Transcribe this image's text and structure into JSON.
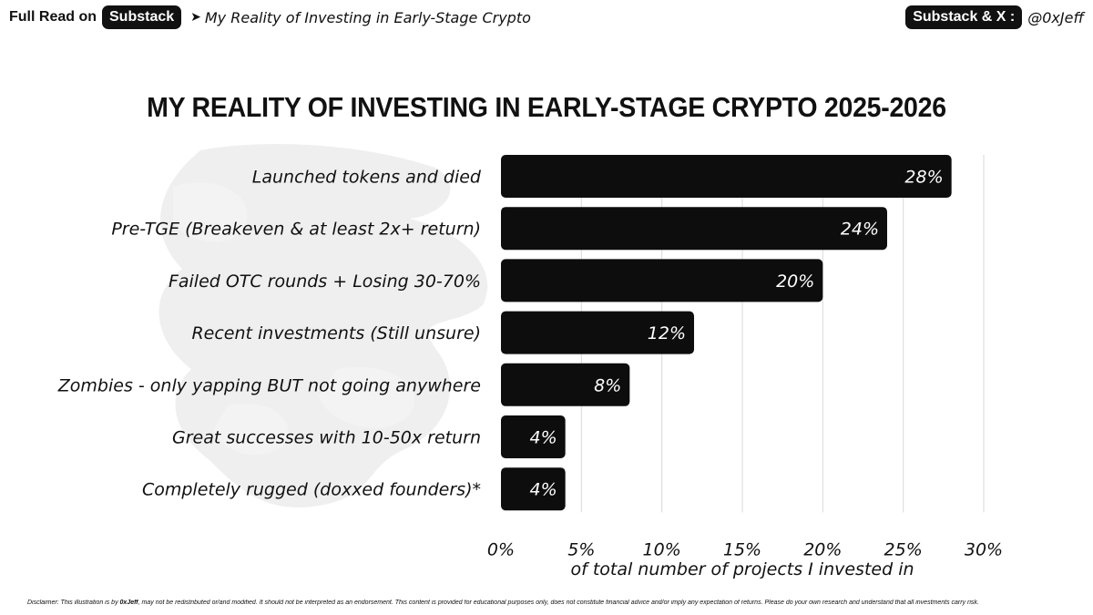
{
  "header": {
    "full_read_label": "Full Read on",
    "substack_badge": "Substack",
    "arrow_icon": "arrow-right-icon",
    "article_title": "My Reality of Investing in Early-Stage Crypto",
    "social_badge": "Substack & X :",
    "handle": "@0xJeff"
  },
  "colors": {
    "bar": "#0d0d0d",
    "bar_label": "#ffffff",
    "grid": "#d9d9d9",
    "background": "#ffffff"
  },
  "chart_data": {
    "type": "bar",
    "orientation": "horizontal",
    "title": "MY REALITY OF INVESTING IN EARLY-STAGE CRYPTO 2025-2026",
    "categories": [
      "Launched tokens and died",
      "Pre-TGE (Breakeven & at least 2x+ return)",
      "Failed OTC rounds + Losing 30-70%",
      "Recent investments (Still unsure)",
      "Zombies - only yapping BUT not going anywhere",
      "Great successes with 10-50x return",
      "Completely rugged (doxxed founders)*"
    ],
    "values": [
      28,
      24,
      20,
      12,
      8,
      4,
      4
    ],
    "value_labels": [
      "28%",
      "24%",
      "20%",
      "12%",
      "8%",
      "4%",
      "4%"
    ],
    "xlabel": "of total number of projects I invested in",
    "ylabel": "",
    "xlim": [
      0,
      30
    ],
    "ticks": [
      0,
      5,
      10,
      15,
      20,
      25,
      30
    ],
    "tick_labels": [
      "0%",
      "5%",
      "10%",
      "15%",
      "20%",
      "25%",
      "30%"
    ],
    "grid": "vertical"
  },
  "disclaimer": {
    "prefix": "Disclaimer: This illustration is by ",
    "author": "0xJeff",
    "suffix": ", may not be redistributed or/and modified. It should not be interpreted as an endorsement. This content is provided for educational purposes only, does not constitute financial advice and/or imply any expectation of returns. Please do your own research and understand that all investments carry risk."
  }
}
